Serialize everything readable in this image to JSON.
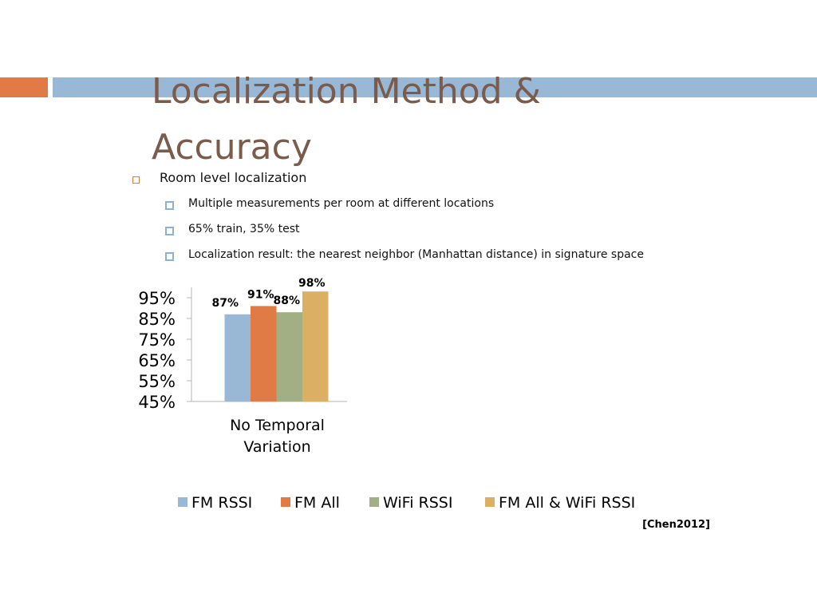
{
  "slide": {
    "title": "Localization Method & Accuracy",
    "bullets": [
      {
        "text": "Room level localization",
        "level": 1
      },
      {
        "text": "Multiple measurements per room at different locations",
        "level": 2
      },
      {
        "text": "65% train, 35% test",
        "level": 2
      },
      {
        "text": "Localization result: the nearest neighbor (Manhattan distance) in signature space",
        "level": 2
      }
    ],
    "citation": "[Chen2012]"
  },
  "chart_data": {
    "type": "bar",
    "categories": [
      "No Temporal Variation"
    ],
    "series": [
      {
        "name": "FM RSSI",
        "values": [
          0.87
        ],
        "label": "87%",
        "color": "#98B8D6"
      },
      {
        "name": "FM All",
        "values": [
          0.91
        ],
        "label": "91%",
        "color": "#E07B46"
      },
      {
        "name": "WiFi RSSI",
        "values": [
          0.88
        ],
        "label": "88%",
        "color": "#A2AE84"
      },
      {
        "name": "FM All & WiFi RSSI",
        "values": [
          0.98
        ],
        "label": "98%",
        "color": "#DBB062"
      }
    ],
    "ylim": [
      0.45,
      1.0
    ],
    "yticks": [
      "45%",
      "55%",
      "65%",
      "75%",
      "85%",
      "95%"
    ],
    "ytick_values": [
      0.45,
      0.55,
      0.65,
      0.75,
      0.85,
      0.95
    ],
    "legend_position": "bottom",
    "grid": false
  }
}
